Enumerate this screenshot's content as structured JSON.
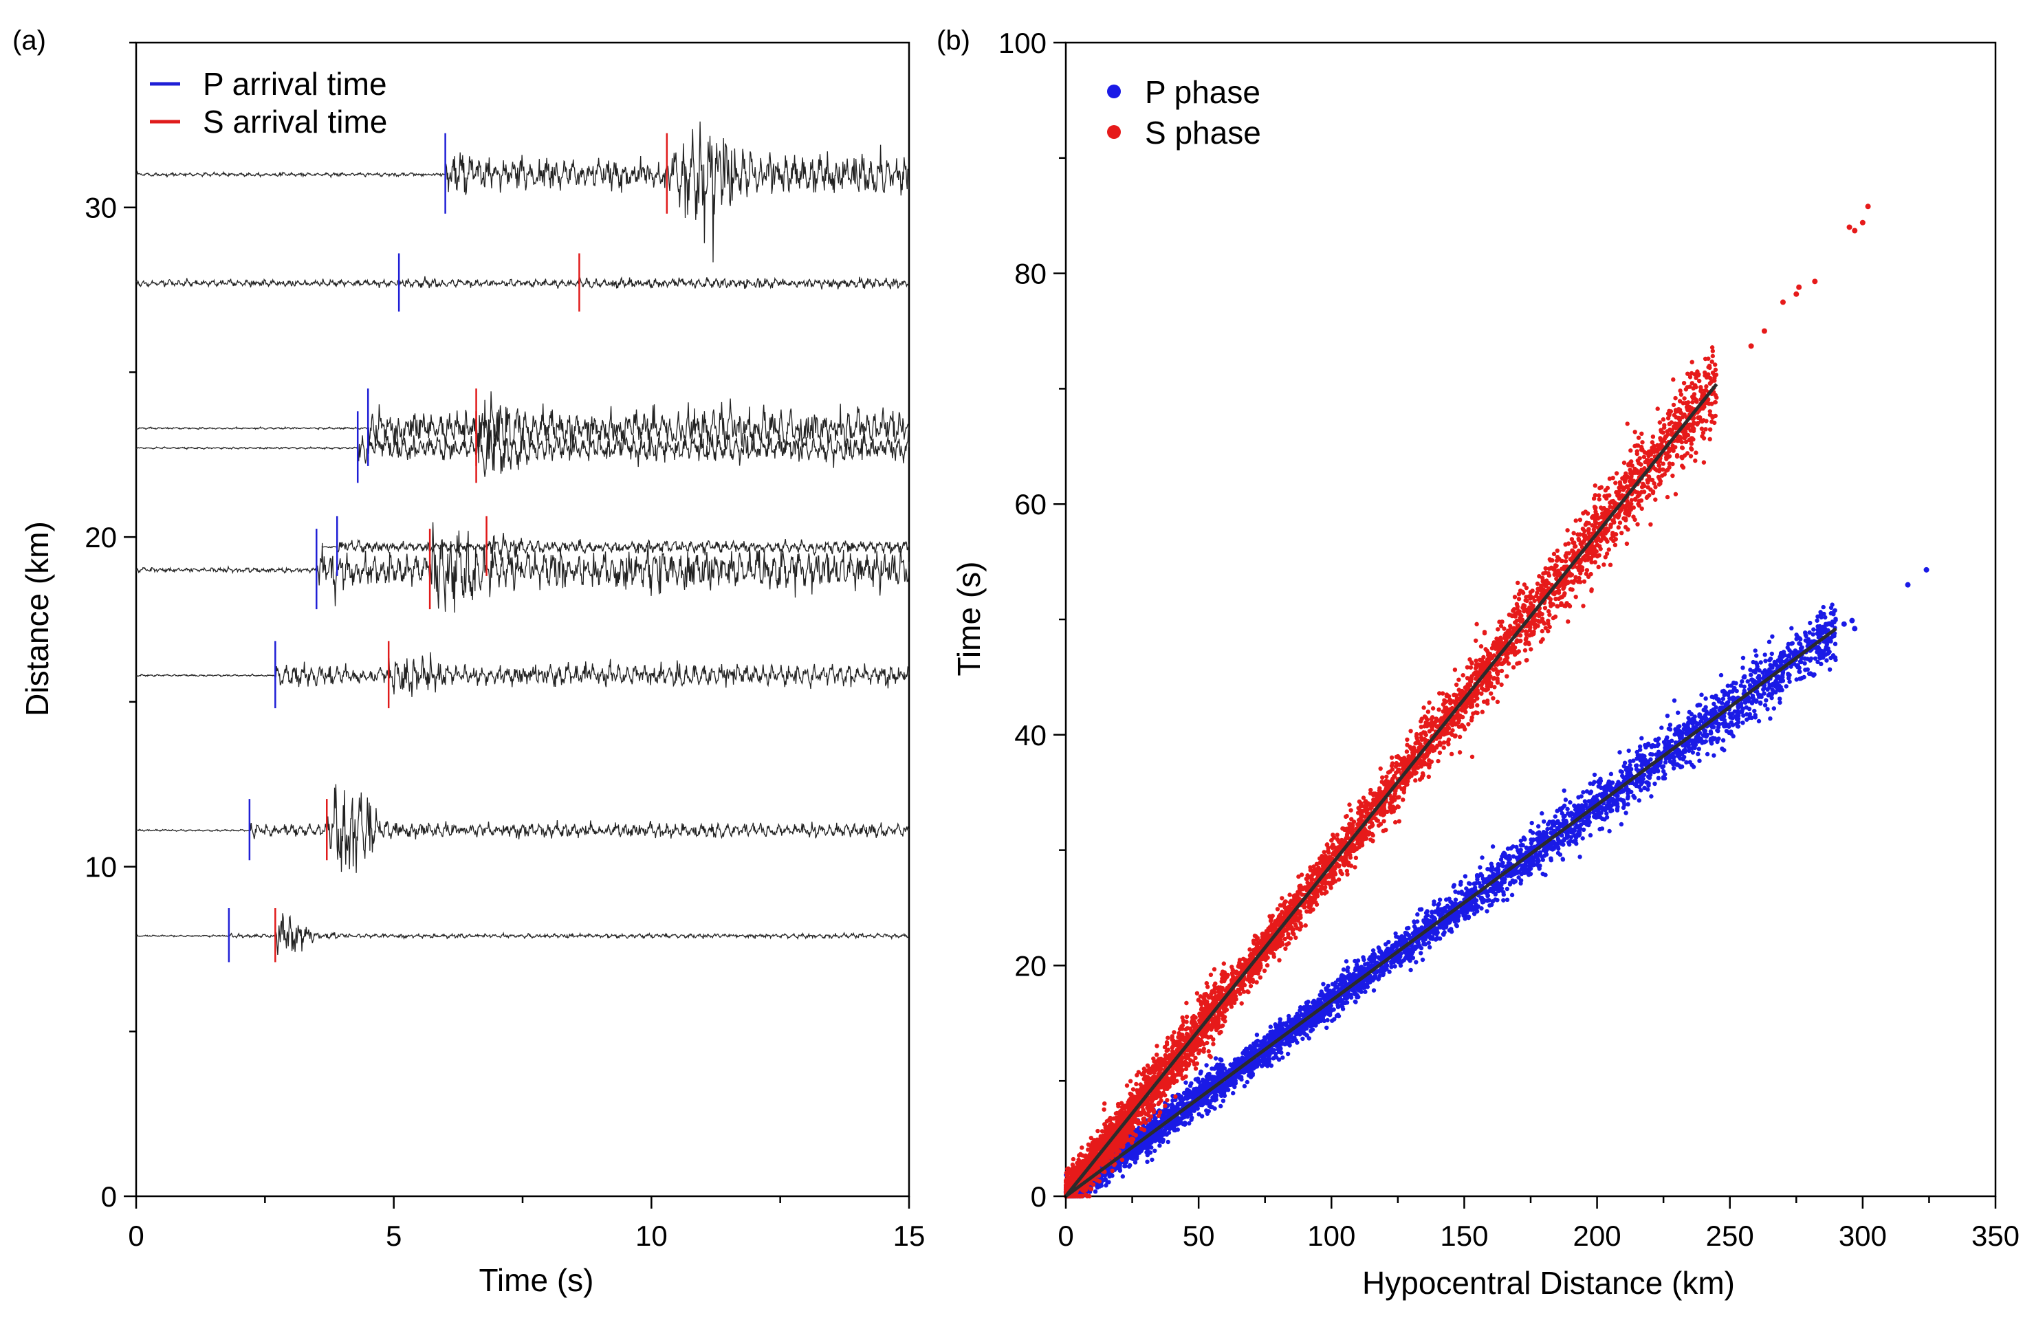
{
  "figure": {
    "panel_a_label": "(a)",
    "panel_b_label": "(b)"
  },
  "chart_data": [
    {
      "id": "a",
      "type": "line",
      "title": "",
      "xlabel": "Time (s)",
      "ylabel": "Distance (km)",
      "xlim": [
        0,
        15
      ],
      "ylim": [
        0,
        35
      ],
      "xticks": [
        0,
        5,
        10,
        15
      ],
      "yticks": [
        0,
        10,
        20,
        30
      ],
      "legend": [
        {
          "name": "P arrival time",
          "color": "#1f1fd6"
        },
        {
          "name": "S arrival time",
          "color": "#e01b1b"
        }
      ],
      "legend_position": "top-left",
      "traces": [
        {
          "distance": 31.0,
          "start": 0.0,
          "p": 6.0,
          "s": 10.3,
          "pre_amp": 0.08,
          "amp": 1.0,
          "peak_amp": 2.6,
          "peak_t": 11.1
        },
        {
          "distance": 27.7,
          "start": 0.0,
          "p": 5.1,
          "s": 8.6,
          "pre_amp": 0.15,
          "amp": 0.25,
          "peak_amp": 0.5,
          "peak_t": 5.3
        },
        {
          "distance": 23.3,
          "start": 0.0,
          "p": 4.5,
          "s": 6.6,
          "pre_amp": 0.04,
          "amp": 0.9,
          "peak_amp": 1.6,
          "peak_t": 6.9
        },
        {
          "distance": 22.7,
          "start": 0.0,
          "p": 4.3,
          "s": 6.6,
          "pre_amp": 0.04,
          "amp": 0.7,
          "peak_amp": 1.4,
          "peak_t": 6.7
        },
        {
          "distance": 19.7,
          "start": 3.6,
          "p": 3.9,
          "s": 6.8,
          "pre_amp": 0.03,
          "amp": 0.3,
          "peak_amp": 0.6,
          "peak_t": 7.0
        },
        {
          "distance": 19.0,
          "start": 0.0,
          "p": 3.5,
          "s": 5.7,
          "pre_amp": 0.1,
          "amp": 1.0,
          "peak_amp": 2.4,
          "peak_t": 6.0
        },
        {
          "distance": 15.8,
          "start": 0.0,
          "p": 2.7,
          "s": 4.9,
          "pre_amp": 0.04,
          "amp": 0.55,
          "peak_amp": 1.0,
          "peak_t": 5.2
        },
        {
          "distance": 11.1,
          "start": 0.0,
          "p": 2.2,
          "s": 3.7,
          "pre_amp": 0.04,
          "amp": 0.35,
          "peak_amp": 2.2,
          "peak_t": 4.1
        },
        {
          "distance": 7.9,
          "start": 0.0,
          "p": 1.8,
          "s": 2.7,
          "pre_amp": 0.04,
          "amp": 0.1,
          "peak_amp": 0.9,
          "peak_t": 2.9
        }
      ]
    },
    {
      "id": "b",
      "type": "scatter",
      "title": "",
      "xlabel": "Hypocentral Distance (km)",
      "ylabel": "Time (s)",
      "xlim": [
        0,
        350
      ],
      "ylim": [
        0,
        100
      ],
      "xticks": [
        0,
        50,
        100,
        150,
        200,
        250,
        300,
        350
      ],
      "yticks": [
        0,
        20,
        40,
        60,
        80,
        100
      ],
      "legend": [
        {
          "name": "P phase",
          "color": "#1a1ae6"
        },
        {
          "name": "S  phase",
          "color": "#e61a1a"
        }
      ],
      "legend_position": "top-left",
      "series": [
        {
          "name": "P phase",
          "color": "#1a1ae6",
          "dense_range": [
            0,
            290
          ],
          "dense_slope": 0.1695,
          "dense_scatter": 0.9,
          "outliers": [
            [
              293,
              49.6
            ],
            [
              296,
              49.9
            ],
            [
              297,
              49.2
            ],
            [
              317,
              53.0
            ],
            [
              324,
              54.3
            ]
          ],
          "fit_line": [
            [
              0,
              0
            ],
            [
              290,
              49.2
            ]
          ]
        },
        {
          "name": "S  phase",
          "color": "#e61a1a",
          "dense_range": [
            0,
            245
          ],
          "dense_slope": 0.2875,
          "dense_scatter": 1.1,
          "outliers": [
            [
              258,
              73.7
            ],
            [
              263,
              75.0
            ],
            [
              270,
              77.5
            ],
            [
              275,
              78.2
            ],
            [
              276,
              78.8
            ],
            [
              282,
              79.3
            ],
            [
              295,
              84.0
            ],
            [
              297,
              83.7
            ],
            [
              300,
              84.4
            ],
            [
              302,
              85.8
            ]
          ],
          "fit_line": [
            [
              0,
              0
            ],
            [
              245,
              70.4
            ]
          ]
        }
      ]
    }
  ]
}
